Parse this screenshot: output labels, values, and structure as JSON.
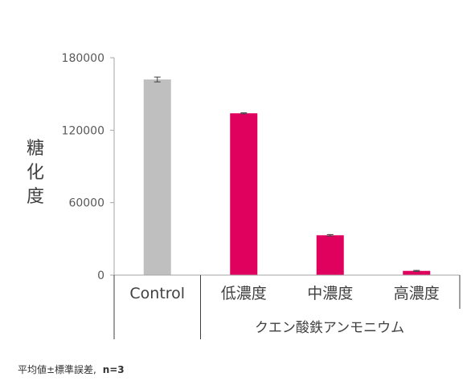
{
  "chart_data": {
    "type": "bar",
    "categories": [
      "Control",
      "低濃度",
      "中濃度",
      "高濃度"
    ],
    "values": [
      162000,
      134000,
      33000,
      3500
    ],
    "errors": [
      2000,
      400,
      600,
      400
    ],
    "colors": [
      "#BFBFBF",
      "#E0005E",
      "#E0005E",
      "#E0005E"
    ],
    "ylabel": "糖化度",
    "yticks": [
      0,
      60000,
      120000,
      180000
    ],
    "ylim": [
      0,
      180000
    ],
    "group_label": "クエン酸鉄アンモニウム",
    "grid": false
  },
  "footnote": {
    "text": "平均値±標準誤差,",
    "n": "n=3"
  }
}
